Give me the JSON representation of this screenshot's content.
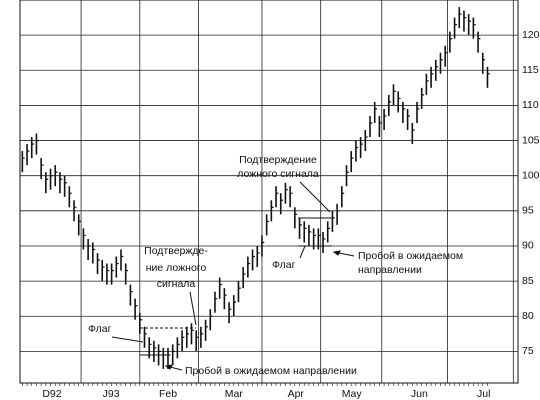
{
  "chart_data": {
    "type": "ohlc",
    "high": [
      103.5,
      104.5,
      105.5,
      106,
      102.5,
      100.5,
      101,
      101.5,
      100.5,
      100,
      98.5,
      96.5,
      94.5,
      92.5,
      91,
      90.5,
      89,
      88,
      87.5,
      87.5,
      88.5,
      89.5,
      87.5,
      84.5,
      82.5,
      80.5,
      78.5,
      77,
      76.5,
      76,
      75.5,
      75.5,
      76,
      77,
      78,
      78.5,
      79,
      78,
      78.5,
      79.5,
      81,
      83.5,
      85.5,
      84,
      82,
      83,
      85,
      87,
      88.5,
      89.5,
      90,
      91.5,
      94.5,
      96.5,
      98.5,
      97.5,
      99,
      98.5,
      95.5,
      94,
      93.5,
      93,
      92.5,
      92.5,
      92,
      93.5,
      95,
      96,
      98.5,
      101.5,
      103.5,
      105,
      105.5,
      106.5,
      108.5,
      110.5,
      108.5,
      109.5,
      111.5,
      113,
      112,
      110.5,
      109.5,
      107.5,
      110.5,
      112.5,
      114.5,
      115.5,
      116.5,
      117.5,
      118.5,
      120.5,
      122.5,
      124,
      123.5,
      123,
      122.5,
      120.5,
      117.5,
      115.5
    ],
    "low": [
      100.5,
      101.5,
      102.5,
      103,
      99.5,
      97.5,
      98,
      98.5,
      97.5,
      97,
      95.5,
      93.5,
      91.5,
      89.5,
      88,
      87.5,
      86,
      85,
      84.5,
      84.5,
      85.5,
      86.5,
      84.5,
      81.5,
      79.5,
      77.5,
      75.5,
      74,
      73.5,
      73,
      72.5,
      72.5,
      73,
      74,
      75,
      75.5,
      76,
      75,
      75.5,
      76.5,
      78,
      80.5,
      82.5,
      81,
      79,
      80,
      82,
      84,
      85.5,
      86.5,
      87,
      88.5,
      91.5,
      93.5,
      95.5,
      94.5,
      96,
      95.5,
      92.5,
      91,
      90.5,
      90,
      89.5,
      89.5,
      89,
      90.5,
      92,
      93,
      95.5,
      98.5,
      100.5,
      102,
      102.5,
      103.5,
      105.5,
      107.5,
      105.5,
      106.5,
      108.5,
      110,
      109,
      107.5,
      106.5,
      104.5,
      107.5,
      109.5,
      111.5,
      112.5,
      113.5,
      114.5,
      115.5,
      117.5,
      119.5,
      121,
      120.5,
      120,
      119.5,
      117.5,
      114.5,
      112.5
    ],
    "close": [
      102.5,
      103.5,
      104.5,
      105,
      101.5,
      99.5,
      100,
      100.5,
      99.5,
      99,
      97.5,
      95.5,
      93.5,
      91.5,
      90,
      89.5,
      88,
      87,
      86.5,
      86.5,
      87.5,
      88.5,
      86.5,
      83.5,
      81.5,
      79.5,
      77.5,
      76,
      75.5,
      75,
      74.5,
      74.5,
      75,
      76,
      77,
      77.5,
      78,
      77,
      77.5,
      78.5,
      80,
      82.5,
      84.5,
      83,
      81,
      82,
      84,
      86,
      87.5,
      88.5,
      89,
      90.5,
      93.5,
      95.5,
      97.5,
      96.5,
      98,
      97.5,
      94.5,
      93,
      92.5,
      92,
      91.5,
      91.5,
      91,
      92.5,
      94,
      95,
      97.5,
      100.5,
      102.5,
      104,
      104.5,
      105.5,
      107.5,
      109.5,
      107.5,
      108.5,
      110.5,
      112,
      111,
      109.5,
      108.5,
      106.5,
      109.5,
      111.5,
      113.5,
      114.5,
      115.5,
      116.5,
      117.5,
      119.5,
      121.5,
      123,
      122.5,
      122,
      121.5,
      119.5,
      116.5,
      114.5
    ],
    "color": "#111111",
    "xlim": [
      0,
      106
    ],
    "xticks": [
      {
        "value": 6.8,
        "label": "D92"
      },
      {
        "value": 19.4,
        "label": "J93"
      },
      {
        "value": 31.5,
        "label": "Feb"
      },
      {
        "value": 45.5,
        "label": "Mar"
      },
      {
        "value": 58.7,
        "label": "Apr"
      },
      {
        "value": 70.6,
        "label": "May"
      },
      {
        "value": 85,
        "label": "Jun"
      },
      {
        "value": 98.7,
        "label": "Jul"
      }
    ],
    "x_grid": [
      13,
      25.5,
      38,
      51.5,
      64,
      77,
      91,
      105
    ],
    "ylim": [
      70.5,
      125
    ],
    "yticks": [
      75,
      80,
      85,
      90,
      95,
      100,
      105,
      110,
      115,
      120
    ],
    "grid": true,
    "annotations": [
      {
        "lines": [
          "Подтверждение",
          "ложного сигнала"
        ]
      },
      {
        "lines": [
          "Подтвержде-",
          "ние ложного",
          "сигнала"
        ]
      },
      {
        "lines": [
          "Флаг"
        ]
      },
      {
        "lines": [
          "Флаг"
        ]
      },
      {
        "lines": [
          "Пробой в ожидаемом направлении"
        ]
      },
      {
        "lines": [
          "Пробой в ожидаемом",
          "направлении"
        ]
      }
    ]
  }
}
